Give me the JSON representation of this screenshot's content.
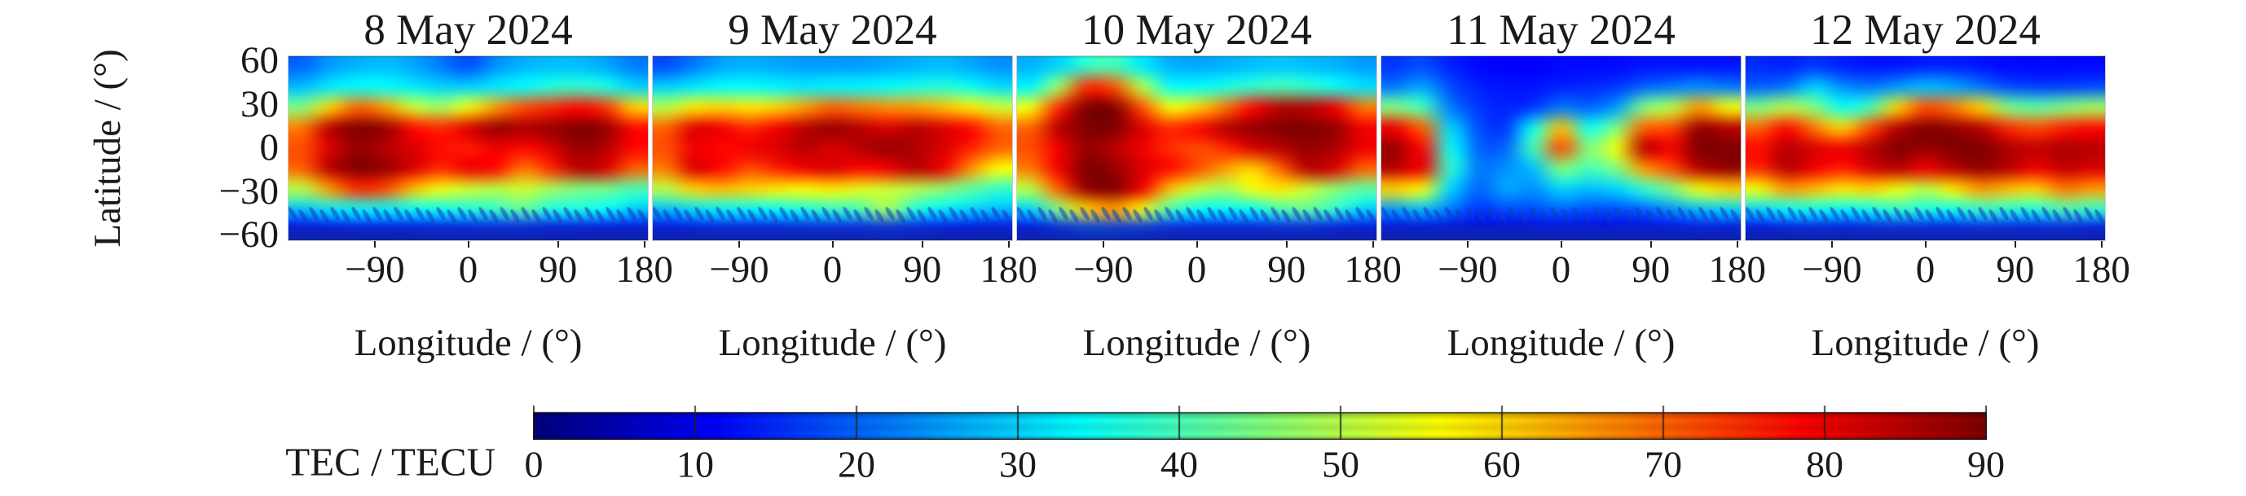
{
  "figure": {
    "background": "#ffffff",
    "text_color": "#1a1a1a",
    "y_axis_label": "Latitude / (°)",
    "x_axis_label": "Longitude / (°)",
    "y_tick_labels": [
      "60",
      "30",
      "0",
      "−30",
      "−60"
    ],
    "y_tick_values": [
      60,
      30,
      0,
      -30,
      -60
    ],
    "x_tick_labels": [
      "−90",
      "0",
      "90",
      "180"
    ],
    "x_tick_values": [
      -90,
      0,
      90,
      180
    ],
    "colorbar": {
      "label": "TEC / TECU",
      "unit": "TECU",
      "min": 0,
      "max": 90,
      "tick_labels": [
        "0",
        "10",
        "20",
        "30",
        "40",
        "50",
        "60",
        "70",
        "80",
        "90"
      ],
      "tick_values": [
        0,
        10,
        20,
        30,
        40,
        50,
        60,
        70,
        80,
        90
      ],
      "colormap": "jet"
    }
  },
  "chart_data": [
    {
      "type": "heatmap",
      "title": "8 May 2024",
      "xlabel": "Longitude / (°)",
      "ylabel": "Latitude / (°)",
      "xlim": [
        -180,
        180
      ],
      "ylim": [
        -63,
        63
      ],
      "value_unit": "TECU",
      "value_range": [
        0,
        90
      ],
      "lons": [
        -180,
        -150,
        -120,
        -90,
        -60,
        -30,
        0,
        30,
        60,
        90,
        120,
        150,
        180
      ],
      "lats": [
        60,
        45,
        30,
        15,
        0,
        -15,
        -30,
        -45,
        -60
      ],
      "tec": [
        [
          20,
          25,
          27,
          28,
          26,
          22,
          18,
          24,
          27,
          28,
          28,
          26,
          22
        ],
        [
          28,
          32,
          34,
          34,
          32,
          30,
          30,
          32,
          34,
          37,
          38,
          36,
          30
        ],
        [
          45,
          60,
          70,
          65,
          52,
          48,
          55,
          65,
          72,
          75,
          78,
          74,
          60
        ],
        [
          68,
          85,
          90,
          88,
          78,
          75,
          82,
          88,
          86,
          88,
          90,
          88,
          78
        ],
        [
          72,
          82,
          88,
          85,
          82,
          78,
          76,
          80,
          78,
          82,
          88,
          85,
          78
        ],
        [
          70,
          85,
          90,
          88,
          82,
          75,
          80,
          78,
          68,
          75,
          85,
          82,
          70
        ],
        [
          50,
          65,
          75,
          72,
          62,
          55,
          52,
          50,
          52,
          48,
          45,
          44,
          40
        ],
        [
          28,
          32,
          34,
          33,
          34,
          35,
          36,
          38,
          42,
          36,
          36,
          34,
          29
        ],
        [
          10,
          11,
          12,
          12,
          12,
          13,
          13,
          13,
          13,
          12,
          12,
          11,
          10
        ]
      ]
    },
    {
      "type": "heatmap",
      "title": "9 May 2024",
      "xlabel": "Longitude / (°)",
      "ylabel": "Latitude / (°)",
      "xlim": [
        -180,
        180
      ],
      "ylim": [
        -63,
        63
      ],
      "value_unit": "TECU",
      "value_range": [
        0,
        90
      ],
      "lons": [
        -180,
        -150,
        -120,
        -90,
        -60,
        -30,
        0,
        30,
        60,
        90,
        120,
        150,
        180
      ],
      "lats": [
        60,
        45,
        30,
        15,
        0,
        -15,
        -30,
        -45,
        -60
      ],
      "tec": [
        [
          18,
          22,
          26,
          27,
          26,
          25,
          25,
          25,
          26,
          27,
          28,
          26,
          24
        ],
        [
          30,
          32,
          34,
          34,
          33,
          32,
          33,
          33,
          34,
          36,
          37,
          35,
          31
        ],
        [
          50,
          58,
          60,
          58,
          60,
          65,
          70,
          68,
          66,
          65,
          62,
          58,
          52
        ],
        [
          70,
          82,
          80,
          75,
          80,
          85,
          88,
          85,
          82,
          85,
          82,
          78,
          70
        ],
        [
          72,
          80,
          78,
          80,
          82,
          85,
          82,
          85,
          88,
          86,
          82,
          76,
          70
        ],
        [
          68,
          82,
          78,
          72,
          76,
          80,
          82,
          78,
          80,
          85,
          80,
          66,
          56
        ],
        [
          50,
          60,
          62,
          60,
          58,
          56,
          58,
          54,
          52,
          50,
          46,
          42,
          38
        ],
        [
          28,
          31,
          33,
          33,
          34,
          36,
          38,
          40,
          48,
          36,
          32,
          30,
          28
        ],
        [
          11,
          12,
          13,
          13,
          13,
          14,
          14,
          14,
          15,
          13,
          12,
          11,
          10
        ]
      ]
    },
    {
      "type": "heatmap",
      "title": "10 May 2024",
      "xlabel": "Longitude / (°)",
      "ylabel": "Latitude / (°)",
      "xlim": [
        -180,
        180
      ],
      "ylim": [
        -63,
        63
      ],
      "value_unit": "TECU",
      "value_range": [
        0,
        90
      ],
      "lons": [
        -180,
        -150,
        -120,
        -90,
        -60,
        -30,
        0,
        30,
        60,
        90,
        120,
        150,
        180
      ],
      "lats": [
        60,
        45,
        30,
        15,
        0,
        -15,
        -30,
        -45,
        -60
      ],
      "tec": [
        [
          27,
          30,
          38,
          40,
          32,
          27,
          26,
          27,
          28,
          29,
          28,
          27,
          25
        ],
        [
          33,
          48,
          75,
          72,
          50,
          35,
          34,
          36,
          38,
          40,
          38,
          35,
          31
        ],
        [
          55,
          75,
          90,
          90,
          72,
          55,
          60,
          68,
          78,
          85,
          85,
          80,
          68
        ],
        [
          70,
          85,
          90,
          90,
          82,
          75,
          78,
          85,
          88,
          90,
          90,
          88,
          80
        ],
        [
          72,
          80,
          88,
          85,
          80,
          75,
          72,
          75,
          82,
          85,
          88,
          86,
          80
        ],
        [
          68,
          80,
          90,
          88,
          82,
          78,
          72,
          65,
          60,
          70,
          85,
          82,
          70
        ],
        [
          50,
          70,
          88,
          90,
          80,
          62,
          52,
          48,
          55,
          58,
          52,
          46,
          42
        ],
        [
          30,
          45,
          60,
          65,
          55,
          40,
          34,
          33,
          34,
          40,
          42,
          38,
          30
        ],
        [
          11,
          14,
          18,
          18,
          16,
          14,
          13,
          13,
          13,
          14,
          14,
          12,
          11
        ]
      ]
    },
    {
      "type": "heatmap",
      "title": "11 May 2024",
      "xlabel": "Longitude / (°)",
      "ylabel": "Latitude / (°)",
      "xlim": [
        -180,
        180
      ],
      "ylim": [
        -63,
        63
      ],
      "value_unit": "TECU",
      "value_range": [
        0,
        90
      ],
      "lons": [
        -180,
        -150,
        -120,
        -90,
        -60,
        -30,
        0,
        30,
        60,
        90,
        120,
        150,
        180
      ],
      "lats": [
        60,
        45,
        30,
        15,
        0,
        -15,
        -30,
        -45,
        -60
      ],
      "tec": [
        [
          16,
          18,
          14,
          12,
          11,
          11,
          12,
          12,
          12,
          13,
          13,
          13,
          13
        ],
        [
          22,
          26,
          18,
          14,
          13,
          13,
          14,
          15,
          16,
          20,
          22,
          24,
          22
        ],
        [
          45,
          40,
          22,
          16,
          14,
          16,
          22,
          20,
          25,
          45,
          50,
          65,
          55
        ],
        [
          80,
          70,
          30,
          18,
          16,
          35,
          62,
          35,
          45,
          70,
          72,
          88,
          85
        ],
        [
          88,
          78,
          35,
          20,
          20,
          40,
          72,
          45,
          55,
          85,
          80,
          90,
          90
        ],
        [
          85,
          80,
          38,
          22,
          24,
          28,
          45,
          40,
          45,
          65,
          72,
          85,
          88
        ],
        [
          60,
          55,
          30,
          20,
          26,
          24,
          30,
          28,
          30,
          38,
          45,
          55,
          60
        ],
        [
          25,
          28,
          22,
          16,
          18,
          18,
          20,
          18,
          18,
          20,
          24,
          28,
          30
        ],
        [
          9,
          9,
          10,
          9,
          9,
          10,
          10,
          10,
          10,
          10,
          11,
          12,
          11
        ]
      ]
    },
    {
      "type": "heatmap",
      "title": "12 May 2024",
      "xlabel": "Longitude / (°)",
      "ylabel": "Latitude / (°)",
      "xlim": [
        -180,
        180
      ],
      "ylim": [
        -63,
        63
      ],
      "value_unit": "TECU",
      "value_range": [
        0,
        90
      ],
      "lons": [
        -180,
        -150,
        -120,
        -90,
        -60,
        -30,
        0,
        30,
        60,
        90,
        120,
        150,
        180
      ],
      "lats": [
        60,
        45,
        30,
        15,
        0,
        -15,
        -30,
        -45,
        -60
      ],
      "tec": [
        [
          15,
          14,
          16,
          14,
          13,
          13,
          14,
          14,
          13,
          12,
          12,
          12,
          12
        ],
        [
          20,
          22,
          30,
          24,
          22,
          25,
          28,
          26,
          22,
          18,
          17,
          17,
          18
        ],
        [
          45,
          50,
          45,
          35,
          40,
          60,
          72,
          68,
          60,
          45,
          42,
          45,
          48
        ],
        [
          70,
          78,
          68,
          60,
          72,
          85,
          90,
          88,
          85,
          75,
          72,
          76,
          78
        ],
        [
          78,
          85,
          82,
          80,
          85,
          90,
          88,
          90,
          90,
          86,
          84,
          86,
          85
        ],
        [
          75,
          85,
          80,
          76,
          82,
          85,
          80,
          85,
          88,
          85,
          80,
          84,
          82
        ],
        [
          55,
          65,
          62,
          58,
          60,
          55,
          50,
          58,
          65,
          62,
          60,
          68,
          65
        ],
        [
          30,
          34,
          35,
          33,
          35,
          38,
          36,
          35,
          38,
          37,
          36,
          40,
          38
        ],
        [
          11,
          12,
          13,
          12,
          13,
          14,
          13,
          13,
          14,
          13,
          13,
          13,
          12
        ]
      ]
    }
  ]
}
